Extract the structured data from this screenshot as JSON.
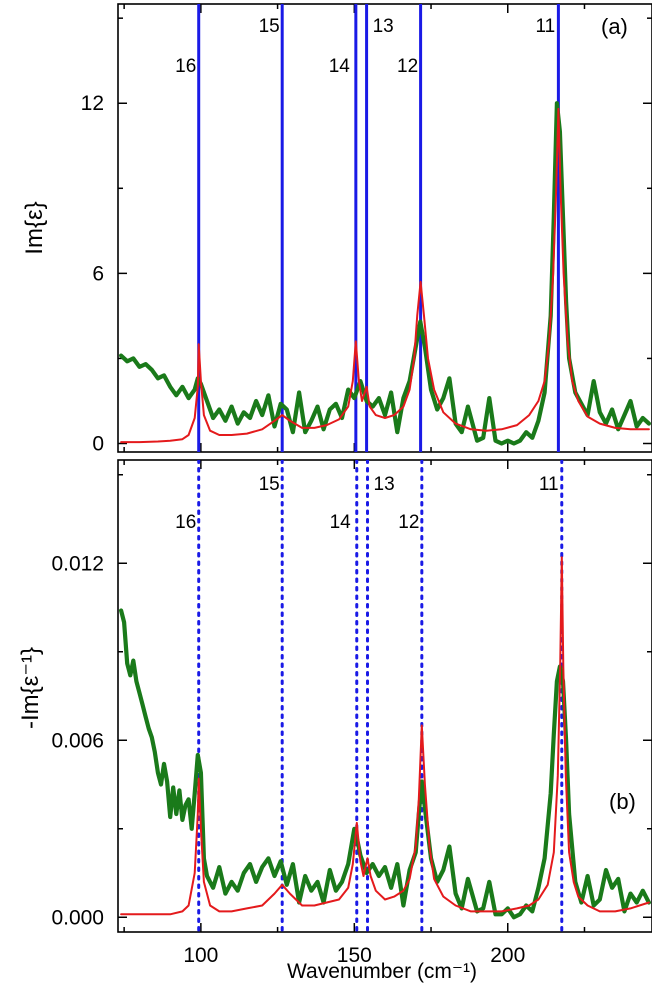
{
  "chart_data": [
    {
      "type": "line",
      "panel": "(a)",
      "ylabel": "Im{ε}",
      "x_range": [
        73,
        247
      ],
      "y_range": [
        -0.3,
        15.5
      ],
      "y_ticks": [
        0,
        6,
        12
      ],
      "x_ticks": [
        100,
        150,
        200
      ],
      "mode_lines": {
        "style": "solid",
        "color": "#1a1ae6",
        "modes": [
          {
            "label": "16",
            "x": 99.3
          },
          {
            "label": "15",
            "x": 126.5
          },
          {
            "label": "14",
            "x": 150.5
          },
          {
            "label": "13",
            "x": 154.0
          },
          {
            "label": "12",
            "x": 171.6
          },
          {
            "label": "11",
            "x": 216.5
          }
        ]
      },
      "series": [
        {
          "color": "#1a7a1a",
          "x": [
            74,
            76,
            78,
            80,
            82,
            84,
            86,
            88,
            90,
            92,
            94,
            96,
            98,
            99,
            100,
            102,
            104,
            106,
            108,
            110,
            112,
            114,
            116,
            118,
            120,
            122,
            124,
            126,
            128,
            130,
            132,
            134,
            136,
            138,
            140,
            142,
            144,
            146,
            148,
            150,
            152,
            154,
            156,
            158,
            160,
            162,
            164,
            166,
            168,
            170,
            171.5,
            173,
            175,
            177,
            179,
            181,
            183,
            185,
            187,
            190,
            192,
            194,
            196,
            198,
            200,
            202,
            204,
            206,
            208,
            210,
            212,
            214,
            215,
            216,
            217,
            218,
            219,
            220,
            222,
            224,
            226,
            228,
            230,
            232,
            234,
            236,
            238,
            240,
            242,
            244,
            246
          ],
          "y": [
            3.1,
            2.9,
            3.0,
            2.7,
            2.8,
            2.6,
            2.3,
            2.4,
            2.0,
            1.7,
            2.0,
            1.6,
            1.9,
            2.3,
            2.1,
            1.5,
            0.9,
            1.2,
            0.8,
            1.3,
            0.7,
            1.1,
            0.9,
            1.5,
            1.0,
            1.7,
            0.6,
            1.4,
            1.2,
            0.4,
            1.8,
            0.4,
            0.8,
            1.3,
            0.5,
            1.2,
            1.4,
            0.9,
            1.9,
            1.6,
            2.2,
            1.5,
            1.3,
            1.6,
            1.0,
            1.8,
            0.4,
            1.6,
            2.2,
            3.4,
            4.3,
            3.4,
            1.9,
            1.2,
            1.6,
            2.3,
            0.7,
            0.4,
            1.3,
            0.1,
            0.2,
            1.6,
            0.1,
            0.0,
            0.1,
            0.0,
            0.1,
            0.4,
            0.2,
            0.8,
            1.8,
            4.5,
            8.0,
            12.0,
            11.0,
            8.0,
            5.0,
            3.0,
            1.8,
            1.4,
            1.0,
            2.2,
            1.1,
            0.7,
            1.2,
            0.5,
            1.0,
            1.5,
            0.6,
            0.9,
            0.7
          ]
        },
        {
          "color": "#e41a1c",
          "x": [
            74,
            80,
            86,
            90,
            94,
            96,
            98,
            99,
            99.3,
            100,
            101,
            103,
            106,
            110,
            115,
            120,
            124,
            126.5,
            129,
            133,
            137,
            141,
            145,
            148,
            149.5,
            150.5,
            151.5,
            152.5,
            154,
            155,
            157,
            160,
            163,
            166,
            168,
            169.5,
            170.5,
            171.6,
            172.7,
            174,
            176,
            179,
            183,
            188,
            193,
            198,
            203,
            207,
            210,
            212,
            213.5,
            214.8,
            215.8,
            216.5,
            217.2,
            218.2,
            219.5,
            221,
            223,
            226,
            230,
            235,
            240,
            246
          ],
          "y": [
            0.05,
            0.05,
            0.07,
            0.1,
            0.15,
            0.3,
            0.9,
            2.0,
            3.5,
            2.2,
            1.0,
            0.45,
            0.3,
            0.3,
            0.35,
            0.5,
            0.8,
            1.0,
            0.8,
            0.55,
            0.55,
            0.65,
            0.85,
            1.3,
            2.2,
            3.6,
            2.2,
            1.5,
            2.0,
            1.3,
            1.0,
            0.9,
            1.0,
            1.3,
            1.9,
            3.0,
            4.5,
            5.7,
            4.5,
            3.0,
            1.9,
            1.1,
            0.7,
            0.5,
            0.45,
            0.5,
            0.65,
            1.0,
            1.5,
            2.2,
            3.6,
            6.0,
            9.0,
            11.8,
            9.0,
            6.0,
            3.6,
            2.2,
            1.5,
            0.95,
            0.7,
            0.55,
            0.5,
            0.5
          ]
        }
      ]
    },
    {
      "type": "line",
      "panel": "(b)",
      "ylabel": "-Im{ε⁻¹}",
      "xlabel": "Wavenumber (cm⁻¹)",
      "x_range": [
        73,
        247
      ],
      "y_range": [
        -0.0005,
        0.0155
      ],
      "y_ticks": [
        0.0,
        0.006,
        0.012
      ],
      "y_tick_labels": [
        "0.000",
        "0.006",
        "0.012"
      ],
      "x_ticks": [
        100,
        150,
        200
      ],
      "mode_lines": {
        "style": "dotted",
        "color": "#1a1ae6",
        "modes": [
          {
            "label": "16",
            "x": 99.3
          },
          {
            "label": "15",
            "x": 126.5
          },
          {
            "label": "14",
            "x": 150.8
          },
          {
            "label": "13",
            "x": 154.3
          },
          {
            "label": "12",
            "x": 172.0
          },
          {
            "label": "11",
            "x": 217.6
          }
        ]
      },
      "series": [
        {
          "color": "#1a7a1a",
          "x": [
            74,
            75,
            76,
            77,
            78,
            79,
            80,
            81,
            82,
            83,
            84,
            85,
            86,
            87,
            88,
            89,
            90,
            91,
            92,
            93,
            94,
            95,
            96,
            97,
            98,
            99,
            100,
            101,
            102,
            104,
            106,
            108,
            110,
            112,
            114,
            116,
            118,
            120,
            122,
            124,
            126,
            128,
            130,
            132,
            134,
            136,
            138,
            140,
            142,
            144,
            146,
            148,
            150,
            151,
            152,
            154,
            156,
            158,
            160,
            162,
            164,
            166,
            168,
            170,
            171,
            172,
            173,
            175,
            177,
            179,
            181,
            183,
            185,
            187,
            190,
            192,
            194,
            196,
            198,
            200,
            202,
            204,
            206,
            208,
            210,
            212,
            214,
            215,
            216,
            217,
            218,
            219,
            220,
            222,
            224,
            226,
            228,
            230,
            232,
            234,
            236,
            238,
            240,
            242,
            244,
            246
          ],
          "y": [
            0.0104,
            0.01,
            0.0086,
            0.0082,
            0.0087,
            0.008,
            0.0076,
            0.0072,
            0.0068,
            0.0064,
            0.0061,
            0.0056,
            0.0049,
            0.0045,
            0.0052,
            0.0046,
            0.0034,
            0.0044,
            0.0035,
            0.0043,
            0.0033,
            0.0038,
            0.004,
            0.003,
            0.0042,
            0.0055,
            0.0049,
            0.002,
            0.0014,
            0.001,
            0.0017,
            0.0008,
            0.0012,
            0.0009,
            0.0015,
            0.0018,
            0.0012,
            0.0017,
            0.002,
            0.0014,
            0.0019,
            0.0011,
            0.0018,
            0.0005,
            0.0014,
            0.0009,
            0.0012,
            0.0005,
            0.0016,
            0.0009,
            0.0012,
            0.0018,
            0.003,
            0.0026,
            0.0021,
            0.0015,
            0.0018,
            0.0014,
            0.0017,
            0.001,
            0.0018,
            0.0004,
            0.0016,
            0.0022,
            0.0035,
            0.0046,
            0.0037,
            0.002,
            0.0012,
            0.0016,
            0.0024,
            0.0008,
            0.0003,
            0.0013,
            0.0002,
            0.0003,
            0.0012,
            0.0001,
            0.0001,
            0.0003,
            0.0,
            0.0001,
            0.0004,
            0.0002,
            0.001,
            0.002,
            0.0042,
            0.0062,
            0.008,
            0.0085,
            0.008,
            0.006,
            0.0035,
            0.0012,
            0.0005,
            0.0014,
            0.0004,
            0.0006,
            0.0016,
            0.001,
            0.0013,
            0.0002,
            0.0008,
            0.0005,
            0.0009,
            0.0005
          ]
        },
        {
          "color": "#e41a1c",
          "x": [
            74,
            80,
            86,
            90,
            94,
            96,
            98,
            99,
            99.3,
            100,
            101,
            103,
            106,
            110,
            115,
            120,
            124,
            126.5,
            129,
            133,
            137,
            141,
            145,
            148,
            149.5,
            150.8,
            152,
            153,
            154.3,
            155.3,
            157,
            160,
            163,
            166,
            168,
            170,
            171,
            172,
            173,
            174.5,
            176,
            179,
            183,
            188,
            193,
            198,
            203,
            207,
            210,
            213,
            215,
            216.3,
            217.1,
            217.6,
            218.1,
            218.9,
            220,
            221.5,
            223,
            226,
            230,
            235,
            240,
            246
          ],
          "y": [
            0.0001,
            0.0001,
            0.0001,
            0.0001,
            0.0002,
            0.0004,
            0.0015,
            0.0035,
            0.0047,
            0.003,
            0.0012,
            0.0004,
            0.0002,
            0.0002,
            0.0003,
            0.0004,
            0.0008,
            0.0011,
            0.0008,
            0.0004,
            0.0004,
            0.0005,
            0.0006,
            0.001,
            0.0018,
            0.0032,
            0.0019,
            0.0014,
            0.002,
            0.0014,
            0.0009,
            0.0006,
            0.0007,
            0.0009,
            0.0013,
            0.0024,
            0.004,
            0.0065,
            0.0045,
            0.0024,
            0.0013,
            0.0007,
            0.0004,
            0.0002,
            0.0002,
            0.0002,
            0.0003,
            0.0004,
            0.0006,
            0.0011,
            0.0022,
            0.0048,
            0.0085,
            0.0122,
            0.0085,
            0.0048,
            0.0022,
            0.0012,
            0.0007,
            0.0004,
            0.0002,
            0.0002,
            0.0003,
            0.0005
          ]
        }
      ]
    }
  ]
}
